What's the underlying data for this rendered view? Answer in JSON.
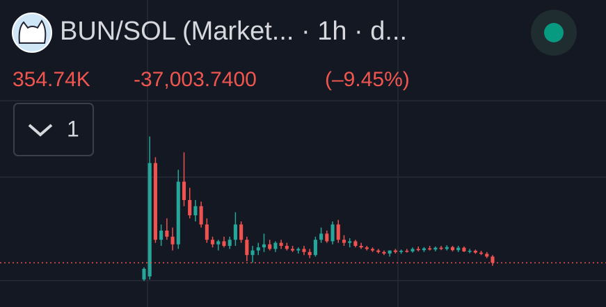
{
  "header": {
    "title": "BUN/SOL (Market...  · 1h · d...",
    "price": "354.74K",
    "change": "-37,003.7400",
    "change_pct": "(–9.45%)"
  },
  "indicator_button": {
    "label": "1"
  },
  "chart_data": {
    "type": "candlestick",
    "ylim": [
      210,
      760
    ],
    "colors": {
      "up": "#26a69a",
      "down": "#ef5350"
    },
    "open": [
      300,
      310,
      681,
      430,
      460,
      440,
      415,
      620,
      560,
      510,
      540,
      480,
      430,
      415,
      425,
      410,
      430,
      480,
      430,
      380,
      395,
      405,
      415,
      400,
      420,
      410,
      400,
      395,
      400,
      390,
      380,
      430,
      450,
      425,
      480,
      430,
      420,
      425,
      410,
      405,
      400,
      395,
      390,
      385,
      395,
      390,
      394,
      392,
      400,
      396,
      402,
      398,
      404,
      400,
      406,
      396,
      404,
      392,
      394,
      388,
      384,
      375
    ],
    "high": [
      340,
      768,
      700,
      480,
      500,
      470,
      659,
      716,
      600,
      560,
      555,
      500,
      440,
      430,
      440,
      440,
      520,
      490,
      440,
      410,
      420,
      450,
      430,
      425,
      430,
      420,
      410,
      405,
      410,
      400,
      440,
      470,
      460,
      490,
      495,
      445,
      435,
      430,
      420,
      410,
      405,
      400,
      395,
      395,
      400,
      398,
      400,
      405,
      408,
      406,
      410,
      408,
      410,
      412,
      410,
      410,
      408,
      400,
      398,
      394,
      390,
      380
    ],
    "low": [
      295,
      300,
      420,
      410,
      430,
      395,
      400,
      540,
      500,
      490,
      470,
      420,
      405,
      395,
      405,
      400,
      410,
      420,
      360,
      355,
      380,
      390,
      395,
      390,
      400,
      395,
      390,
      385,
      380,
      370,
      375,
      420,
      420,
      415,
      420,
      410,
      405,
      405,
      400,
      395,
      390,
      385,
      380,
      375,
      385,
      384,
      388,
      388,
      392,
      390,
      395,
      392,
      396,
      395,
      392,
      390,
      390,
      386,
      384,
      380,
      370,
      345
    ],
    "close": [
      335,
      681,
      430,
      460,
      440,
      415,
      620,
      560,
      510,
      540,
      480,
      430,
      415,
      425,
      410,
      430,
      480,
      430,
      380,
      395,
      405,
      415,
      400,
      420,
      410,
      400,
      395,
      400,
      390,
      380,
      430,
      450,
      425,
      480,
      430,
      420,
      425,
      410,
      405,
      400,
      395,
      390,
      385,
      395,
      390,
      394,
      392,
      400,
      396,
      402,
      398,
      404,
      400,
      406,
      396,
      404,
      392,
      394,
      388,
      384,
      375,
      354.74
    ]
  }
}
